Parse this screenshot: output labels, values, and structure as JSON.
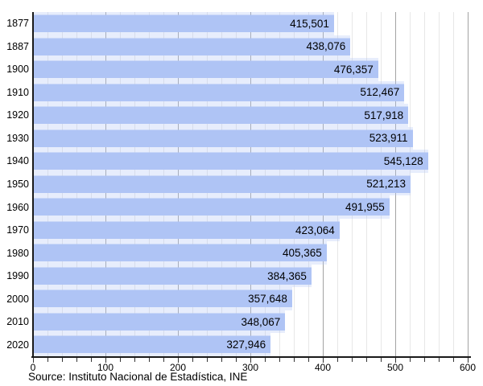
{
  "chart_data": {
    "type": "bar",
    "orientation": "horizontal",
    "title": "",
    "xlabel": "",
    "ylabel": "",
    "categories": [
      "1877",
      "1887",
      "1900",
      "1910",
      "1920",
      "1930",
      "1940",
      "1950",
      "1960",
      "1970",
      "1980",
      "1990",
      "2000",
      "2010",
      "2020"
    ],
    "values": [
      415501,
      438076,
      476357,
      512467,
      517918,
      523911,
      545128,
      521213,
      491955,
      423064,
      405365,
      384365,
      357648,
      348067,
      327946
    ],
    "value_labels": [
      "415,501",
      "438,076",
      "476,357",
      "512,467",
      "517,918",
      "523,911",
      "545,128",
      "521,213",
      "491,955",
      "423,064",
      "405,365",
      "384,365",
      "357,648",
      "348,067",
      "327,946"
    ],
    "xlim": [
      0,
      600000
    ],
    "x_tick_values": [
      0,
      100000,
      200000,
      300000,
      400000,
      500000,
      600000
    ],
    "x_tick_labels": [
      "0",
      "100",
      "200",
      "300",
      "400",
      "500",
      "600"
    ],
    "x_minor_tick_step": 20000,
    "grid": "vertical, minor every 20k light, major every 100k dark",
    "legend": "none",
    "source": "Source: Instituto Nacional de Estadística, INE",
    "colors": {
      "bar_fill": "#afc4f5",
      "bar_edge_tint": "rgba(175,196,245,0.30)",
      "grid_minor": "#e7e7e7",
      "grid_major": "#a3a3a3",
      "axis": "#1a1a1a",
      "text": "#000000",
      "background": "#ffffff"
    }
  }
}
